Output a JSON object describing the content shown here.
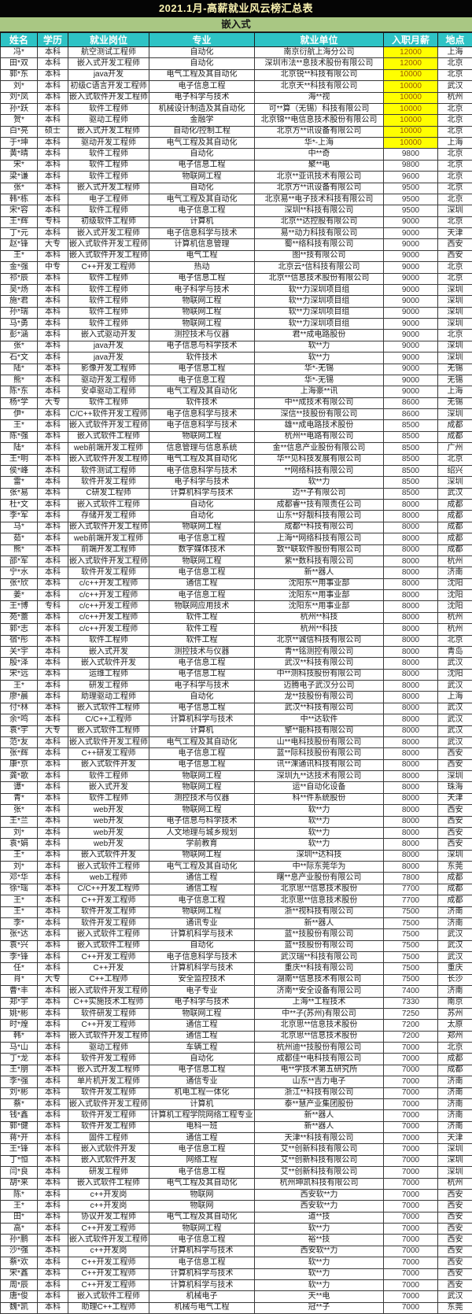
{
  "title": "2021.1月-高薪就业风云榜汇总表",
  "category_band": "嵌入式",
  "colors": {
    "title_bg": "#050505",
    "title_text": "#FAF3B0",
    "band_bg": "#A9C783",
    "header_bg": "#2EC3C5",
    "header_text": "#FFFFFF",
    "salary_highlight_bg": "#FFFF00",
    "salary_highlight_text": "#9C5700"
  },
  "table": {
    "columns": [
      "姓名",
      "学历",
      "就业岗位",
      "专业",
      "就业单位",
      "入职月薪",
      "地点"
    ],
    "row_fields": [
      "name",
      "education",
      "position",
      "major",
      "company",
      "salary",
      "location",
      "salary_highlighted"
    ],
    "rows": [
      [
        "冯*",
        "本科",
        "航空测试工程师",
        "自动化",
        "南京衍航上海分公司",
        "12000",
        "上海",
        true
      ],
      [
        "田*双",
        "本科",
        "嵌入式开发工程师",
        "自动化",
        "深圳市法**息技术股份有限公司",
        "12000",
        "北京",
        true
      ],
      [
        "郭*东",
        "本科",
        "java开发",
        "电气工程及其自动化",
        "北京锐**科技有限公司",
        "10000",
        "北京",
        true
      ],
      [
        "刘*",
        "本科",
        "初级C语言开发工程师",
        "电子信息工程",
        "北京天**科技有限公司",
        "10000",
        "武汉",
        true
      ],
      [
        "刘*凤",
        "本科",
        "嵌入式软件开发工程师",
        "电子科学与技术",
        "海**视",
        "10000",
        "杭州",
        true
      ],
      [
        "孙*跃",
        "本科",
        "软件工程师",
        "机械设计制造及其自动化",
        "可**算（无锡）科技有限公司",
        "10000",
        "北京",
        true
      ],
      [
        "贺*",
        "本科",
        "驱动工程师",
        "金融学",
        "北京锦**电信息技术股份有限公司",
        "10000",
        "北京",
        true
      ],
      [
        "白*亮",
        "硕士",
        "嵌入式开发工程师",
        "自动化/控制工程",
        "北京方**讯设备有限公司",
        "10000",
        "北京",
        true
      ],
      [
        "于*坤",
        "本科",
        "驱动开发工程师",
        "电气工程及其自动化",
        "华*-上海",
        "10000",
        "上海",
        true
      ],
      [
        "黄*晴",
        "本科",
        "软件工程师",
        "自动化",
        "中**奇",
        "9800",
        "北京",
        false
      ],
      [
        "宋*",
        "本科",
        "软件工程师",
        "电子信息工程",
        "聚**电",
        "9800",
        "北京",
        false
      ],
      [
        "梁*谦",
        "本科",
        "软件工程师",
        "物联网工程",
        "北京**亚讯技术有限公司",
        "9600",
        "北京",
        false
      ],
      [
        "张*",
        "本科",
        "嵌入式开发工程师",
        "自动化",
        "北京方**讯设备有限公司",
        "9500",
        "北京",
        false
      ],
      [
        "韩*栋",
        "本科",
        "电子工程师",
        "电气工程及其自动化",
        "北京易**电子技术科技有限公司",
        "9500",
        "北京",
        false
      ],
      [
        "宋*容",
        "本科",
        "软件工程师",
        "电子信息工程",
        "深圳**科技有限公司",
        "9500",
        "深圳",
        false
      ],
      [
        "王*辉",
        "专科",
        "初级软件工程师",
        "计算机",
        "北京**达控股有限公司",
        "9000",
        "北京",
        false
      ],
      [
        "丁*元",
        "本科",
        "嵌入式开发工程师",
        "电子信息科学与技术",
        "易**动力科技有限公司",
        "9000",
        "天津",
        false
      ],
      [
        "赵*锋",
        "大专",
        "嵌入式软件开发工程师",
        "计算机信息管理",
        "蜀**络科技有限公司",
        "9000",
        "西安",
        false
      ],
      [
        "王*",
        "本科",
        "嵌入式软件开发工程师",
        "电气工程",
        "图**技有限公司",
        "9000",
        "西安",
        false
      ],
      [
        "金*强",
        "中专",
        "C++开发工程师",
        "热动",
        "北京云*信科技有限公司",
        "9000",
        "北京",
        false
      ],
      [
        "祁*辰",
        "本科",
        "软件工程师",
        "电子信息工程",
        "北京**信息技术股份有限公司",
        "9000",
        "北京",
        false
      ],
      [
        "吴*炀",
        "本科",
        "软件工程师",
        "电子科学与技术",
        "软**力深圳项目组",
        "9000",
        "深圳",
        false
      ],
      [
        "施*君",
        "本科",
        "软件工程师",
        "物联网工程",
        "软**力深圳项目组",
        "9000",
        "深圳",
        false
      ],
      [
        "孙*瑞",
        "本科",
        "软件工程师",
        "物联网工程",
        "软**力深圳项目组",
        "9000",
        "深圳",
        false
      ],
      [
        "马*勇",
        "本科",
        "软件工程师",
        "物联网工程",
        "软**力深圳项目组",
        "9000",
        "深圳",
        false
      ],
      [
        "彭*涵",
        "本科",
        "嵌入式驱动开发",
        "测控技术与仪器",
        "君**成电路股份",
        "9000",
        "北京",
        false
      ],
      [
        "张*",
        "本科",
        "java开发",
        "电子信息与科学技术",
        "软**力",
        "9000",
        "深圳",
        false
      ],
      [
        "石*文",
        "本科",
        "java开发",
        "软件技术",
        "软**力",
        "9000",
        "深圳",
        false
      ],
      [
        "陆*",
        "本科",
        "影像开发工程师",
        "电子信息工程",
        "华*-无锡",
        "9000",
        "无锡",
        false
      ],
      [
        "熊*",
        "本科",
        "驱动开发工程师",
        "电子信息工程",
        "华*-无锡",
        "9000",
        "无锡",
        false
      ],
      [
        "陈*东",
        "本科",
        "安卓驱动工程师",
        "电气工程及其自动化",
        "上海豪**讯",
        "9000",
        "上海",
        false
      ],
      [
        "杨*学",
        "大专",
        "软件工程师",
        "软件技术",
        "中**成技术有限公司",
        "8600",
        "无锡",
        false
      ],
      [
        "伊*",
        "本科",
        "C/C++软件开发工程师",
        "电子信息科学与技术",
        "深信**技股份有限公司",
        "8600",
        "深圳",
        false
      ],
      [
        "王*",
        "本科",
        "嵌入式软件开发工程师",
        "电子信息科学与技术",
        "雄**成电路技术股份",
        "8500",
        "成都",
        false
      ],
      [
        "陈*强",
        "本科",
        "嵌入式软件工程师",
        "物联网工程",
        "杭州**电路有限公司",
        "8500",
        "成都",
        false
      ],
      [
        "陆*",
        "本科",
        "web前端开发工程师",
        "信息管理与信息系统",
        "金**信息产业股份有限公司",
        "8500",
        "广州",
        false
      ],
      [
        "王*明",
        "本科",
        "嵌入式软件开发工程师",
        "电气工程及其自动化",
        "华**见科技发展有限公司",
        "8500",
        "北京",
        false
      ],
      [
        "侯*峰",
        "本科",
        "软件测试工程师",
        "电子信息科学与技术",
        "**网络科技有限公司",
        "8500",
        "绍兴",
        false
      ],
      [
        "雷*",
        "本科",
        "软件开发工程师",
        "电子科学与技术",
        "软**力",
        "8500",
        "深圳",
        false
      ],
      [
        "张*易",
        "本科",
        "C研发工程师",
        "计算机科学与技术",
        "迈**子有限公司",
        "8500",
        "武汉",
        false
      ],
      [
        "杜*文",
        "本科",
        "嵌入式软件工程师",
        "自动化",
        "成都睿**技有限责任公司",
        "8000",
        "成都",
        false
      ],
      [
        "李*军",
        "本科",
        "存储开发工程师",
        "自动化",
        "山东**好靓科技有限公司",
        "8000",
        "成都",
        false
      ],
      [
        "马*",
        "本科",
        "嵌入式软件开发工程师",
        "物联网工程",
        "成都**科技有限公司",
        "8000",
        "成都",
        false
      ],
      [
        "茹*",
        "本科",
        "web前端开发工程师",
        "电子信息工程",
        "上海**网络科技有限公司",
        "8000",
        "成都",
        false
      ],
      [
        "熊*",
        "本科",
        "前端开发工程师",
        "数字媒体技术",
        "致**联软件股份有限公司",
        "8000",
        "成都",
        false
      ],
      [
        "邵*军",
        "本科",
        "嵌入式软件开发工程师",
        "物联网工程",
        "紫**数科技有限公司",
        "8000",
        "杭州",
        false
      ],
      [
        "宁*水",
        "本科",
        "软件开发工程师",
        "电子信息工程",
        "新**器人",
        "8000",
        "济南",
        false
      ],
      [
        "张*欣",
        "本科",
        "c/c++开发工程师",
        "通信工程",
        "沈阳东**用事业部",
        "8000",
        "沈阳",
        false
      ],
      [
        "姜*",
        "本科",
        "c/c++开发工程师",
        "电子信息工程",
        "沈阳东**用事业部",
        "8000",
        "沈阳",
        false
      ],
      [
        "王*博",
        "专科",
        "c/c++开发工程师",
        "物联网应用技术",
        "沈阳东**用事业部",
        "8000",
        "沈阳",
        false
      ],
      [
        "苑*蕾",
        "本科",
        "c/c++开发工程师",
        "软件工程",
        "杭州**科技",
        "8000",
        "杭州",
        false
      ],
      [
        "郭*志",
        "本科",
        "c/c++开发工程师",
        "软件工程",
        "杭州**科技",
        "8000",
        "杭州",
        false
      ],
      [
        "宿*彤",
        "本科",
        "软件工程师",
        "软件工程",
        "北京**诚信科技有限公司",
        "8000",
        "北京",
        false
      ],
      [
        "关*宇",
        "本科",
        "嵌入式开发",
        "测控技术与仪器",
        "青**铭测控有限公司",
        "8000",
        "青岛",
        false
      ],
      [
        "殷*泽",
        "本科",
        "嵌入式软件开发",
        "电子信息工程",
        "武汉**科技有限公司",
        "8000",
        "武汉",
        false
      ],
      [
        "宋*远",
        "本科",
        "运维工程师",
        "电子信息工程",
        "中**测科技股份有限公司",
        "8000",
        "沈阳",
        false
      ],
      [
        "王*",
        "本科",
        "研发工程师",
        "电子科学与技术",
        "迈腾电子武汉分公司",
        "8000",
        "武汉",
        false
      ],
      [
        "廖*晨",
        "本科",
        "助理驱动工程师",
        "自动化",
        "龙**技股份有限公司",
        "8000",
        "上海",
        false
      ],
      [
        "付*林",
        "本科",
        "嵌入式软件工程师",
        "电子信息工程",
        "武汉**科技有限公司",
        "8000",
        "武汉",
        false
      ],
      [
        "余*鸣",
        "本科",
        "C/C++工程师",
        "计算机科学与技术",
        "中**达软件",
        "8000",
        "武汉",
        false
      ],
      [
        "袁*宇",
        "大专",
        "嵌入式软件工程师",
        "计算机",
        "擎**能科技有限公司",
        "8000",
        "武汉",
        false
      ],
      [
        "范*友",
        "本科",
        "嵌入式软件开发工程师",
        "电气工程及其自动化",
        "山**电科技股份有限公司",
        "8000",
        "武汉",
        false
      ],
      [
        "张*辉",
        "本科",
        "C++研发工程师",
        "电子信息工程",
        "蓝**际科技股份有限公司",
        "8000",
        "西安",
        false
      ],
      [
        "康*京",
        "本科",
        "嵌入式软件开发",
        "电子信息工程",
        "讯**淉通讯科技有限公司",
        "8000",
        "西安",
        false
      ],
      [
        "龚*歌",
        "本科",
        "软件工程师",
        "物联网工程",
        "深圳九**达技术有限公司",
        "8000",
        "深圳",
        false
      ],
      [
        "谭*",
        "本科",
        "嵌入式开发",
        "物联网工程",
        "运**自动化设备",
        "8000",
        "珠海",
        false
      ],
      [
        "青*",
        "本科",
        "软件工程师",
        "测控技术与仪器",
        "科**件系统股份",
        "8000",
        "天津",
        false
      ],
      [
        "张*",
        "本科",
        "web开发",
        "物联网工程",
        "软**力",
        "8000",
        "西安",
        false
      ],
      [
        "王*兰",
        "本科",
        "web开发",
        "电子信息与科学技术",
        "软**力",
        "8000",
        "西安",
        false
      ],
      [
        "刘*",
        "本科",
        "web开发",
        "人文地理与城乡规划",
        "软**力",
        "8000",
        "西安",
        false
      ],
      [
        "袁*娟",
        "本科",
        "web开发",
        "学前教育",
        "软**力",
        "8000",
        "西安",
        false
      ],
      [
        "王*",
        "本科",
        "嵌入式软件开发",
        "物联网工程",
        "深圳**达科技",
        "8000",
        "深圳",
        false
      ],
      [
        "刘*",
        "本科",
        "嵌入式软件工程师",
        "电气工程及其自动化",
        "中**际东莞华为",
        "8000",
        "东莞",
        false
      ],
      [
        "邓*华",
        "本科",
        "web工程师",
        "通信工程",
        "曙**息产业股份有限公司",
        "7800",
        "成都",
        false
      ],
      [
        "徐*瑶",
        "本科",
        "C/C++开发工程师",
        "通信工程",
        "北京思**信息技术股份",
        "7700",
        "成都",
        false
      ],
      [
        "王*",
        "本科",
        "C++开发工程师",
        "电子信息工程",
        "北京思**信息技术股份",
        "7700",
        "成都",
        false
      ],
      [
        "王*",
        "本科",
        "软件开发工程师",
        "物联网工程",
        "浙**视科技有限公司",
        "7500",
        "济南",
        false
      ],
      [
        "李*",
        "本科",
        "软件开发工程师",
        "通讯专业",
        "新**器人",
        "7500",
        "济南",
        false
      ],
      [
        "张*达",
        "本科",
        "嵌入式软件工程师",
        "计算机科学与技术",
        "蓝**技股份有限公司",
        "7500",
        "武汉",
        false
      ],
      [
        "袁*兴",
        "本科",
        "嵌入式软件工程师",
        "自动化",
        "蓝**技股份有限公司",
        "7500",
        "武汉",
        false
      ],
      [
        "李*锋",
        "本科",
        "C++开发工程师",
        "电子信息科学与技术",
        "武汉瑞**科技有限公司",
        "7500",
        "武汉",
        false
      ],
      [
        "任*",
        "本科",
        "C++开发",
        "计算机科学与技术",
        "重庆**科技有限公司",
        "7500",
        "重庆",
        false
      ],
      [
        "肖*",
        "大专",
        "C++工程师",
        "安全监控技术",
        "湖南**信息技术有限公司",
        "7500",
        "长沙",
        false
      ],
      [
        "曹*丰",
        "本科",
        "嵌入式软件开发工程师",
        "电子专业",
        "济南**安全设备有限公司",
        "7400",
        "济南",
        false
      ],
      [
        "郑*宇",
        "本科",
        "C++实施技术工程师",
        "电子科学与技术",
        "上海**工程技术",
        "7330",
        "南京",
        false
      ],
      [
        "姚*彬",
        "本科",
        "软件研发工程师",
        "物联网工程",
        "中**子(苏州)有限公司",
        "7250",
        "苏州",
        false
      ],
      [
        "时*煌",
        "本科",
        "C++开发工程师",
        "通信工程",
        "北京思**信息技术股份",
        "7200",
        "太原",
        false
      ],
      [
        "韩*",
        "本科",
        "嵌入式软件开发工程师",
        "通信工程",
        "北京思**信息技术股份",
        "7200",
        "郑州",
        false
      ],
      [
        "马*山",
        "本科",
        "驱动工程师",
        "车辆工程",
        "杭州迪**技股份有限公司",
        "7000",
        "北京",
        false
      ],
      [
        "丁*龙",
        "本科",
        "软件开发工程师",
        "自动化",
        "成都佳**电科技有限公司",
        "7000",
        "成都",
        false
      ],
      [
        "王*朋",
        "本科",
        "嵌入式开发工程师",
        "电子信息工程",
        "电**学技术第五研究所",
        "7000",
        "成都",
        false
      ],
      [
        "李*强",
        "本科",
        "单片机开发工程师",
        "通信专业",
        "山东**吉力电子",
        "7000",
        "济南",
        false
      ],
      [
        "刘*彬",
        "本科",
        "软件开发工程师",
        "机电工程一体化",
        "浙江**科技有限公司",
        "7000",
        "济南",
        false
      ],
      [
        "蔡*",
        "本科",
        "嵌入式软件开发工程师",
        "计算机",
        "泰**慧产业集团股份",
        "7000",
        "济南",
        false
      ],
      [
        "钱*鑫",
        "本科",
        "软件开发工程师",
        "计算机工程学院网络工程专业",
        "新**器人",
        "7000",
        "济南",
        false
      ],
      [
        "郭*健",
        "本科",
        "软件开发工程师",
        "电科一班",
        "新**器人",
        "7000",
        "济南",
        false
      ],
      [
        "蒋*开",
        "本科",
        "固件工程师",
        "通信工程",
        "天津**科技有限公司",
        "7000",
        "天津",
        false
      ],
      [
        "王*锋",
        "本科",
        "嵌入式软件开发",
        "电子信息工程",
        "艾**创新科技有限公司",
        "7000",
        "深圳",
        false
      ],
      [
        "丁*恒",
        "本科",
        "嵌入式软件开发",
        "网络工程",
        "艾**创新科技有限公司",
        "7000",
        "深圳",
        false
      ],
      [
        "闫*良",
        "本科",
        "研发工程师",
        "电子信息工程",
        "艾**创新科技有限公司",
        "7000",
        "深圳",
        false
      ],
      [
        "胡*来",
        "本科",
        "嵌入式软件工程师",
        "电气工程及其自动化",
        "杭州坤凯科技有限公司",
        "7000",
        "杭州",
        false
      ],
      [
        "陈*",
        "本科",
        "c++开发岗",
        "物联网",
        "西安软**力",
        "7000",
        "西安",
        false
      ],
      [
        "王*",
        "本科",
        "c++开发岗",
        "物联网",
        "西安软**力",
        "7000",
        "西安",
        false
      ],
      [
        "田*",
        "本科",
        "协议开发工程师",
        "电气工程及其自动化",
        "道**技",
        "7000",
        "西安",
        false
      ],
      [
        "高*",
        "本科",
        "C++开发工程师",
        "物联网工程",
        "软**力",
        "7000",
        "西安",
        false
      ],
      [
        "孙*鹏",
        "本科",
        "嵌入式软件开发工程师",
        "电子信息工程",
        "裕**技",
        "7000",
        "西安",
        false
      ],
      [
        "沙*强",
        "本科",
        "c++开发岗",
        "计算机科学与技术",
        "西安软**力",
        "7000",
        "西安",
        false
      ],
      [
        "蔡*欢",
        "本科",
        "C++开发工程师",
        "电子信息工程",
        "软**力",
        "7000",
        "西安",
        false
      ],
      [
        "宋*鑫",
        "本科",
        "C++开发工程师",
        "计算机科学与技术",
        "软**力",
        "7000",
        "西安",
        false
      ],
      [
        "周*辰",
        "本科",
        "C++开发工程师",
        "计算机科学与技术",
        "软**力",
        "7000",
        "西安",
        false
      ],
      [
        "唐*俊",
        "本科",
        "嵌入式软件工程师",
        "机械电子",
        "天**电",
        "7000",
        "武汉",
        false
      ],
      [
        "魏*凯",
        "本科",
        "助理C++工程师",
        "机械与电气工程",
        "冠**子",
        "7000",
        "东莞",
        false
      ]
    ]
  }
}
